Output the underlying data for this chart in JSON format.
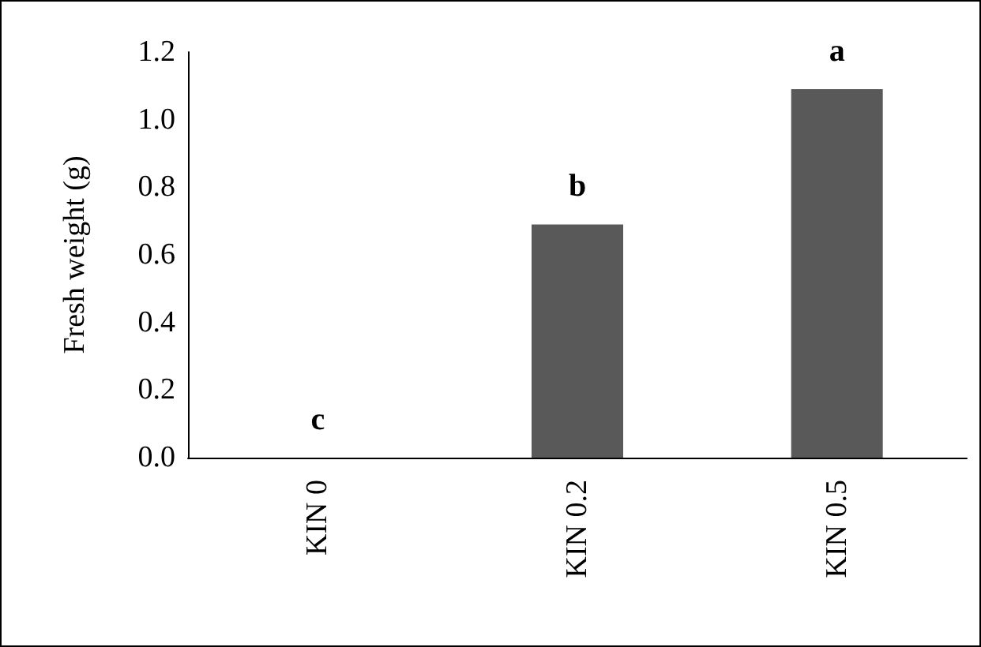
{
  "chart_data": {
    "type": "bar",
    "ylabel": "Fresh weight (g)",
    "categories": [
      "KIN 0",
      "KIN 0.2",
      "KIN 0.5"
    ],
    "values": [
      0,
      0.69,
      1.09
    ],
    "color": "#595959",
    "ylim": [
      0,
      1.2
    ],
    "yticks": [
      {
        "value": 0,
        "label": "0.0"
      },
      {
        "value": 0.2,
        "label": "0.2"
      },
      {
        "value": 0.4,
        "label": "0.4"
      },
      {
        "value": 0.6,
        "label": "0.6"
      },
      {
        "value": 0.8,
        "label": "0.8"
      },
      {
        "value": 1.0,
        "label": "1.0"
      },
      {
        "value": 1.2,
        "label": "1.2"
      }
    ],
    "grid": false,
    "annotations": [
      {
        "text": "c",
        "x": "KIN 0",
        "y": 0
      },
      {
        "text": "b",
        "x": "KIN 0.2",
        "y": 0.69
      },
      {
        "text": "a",
        "x": "KIN 0.5",
        "y": 1.09
      }
    ]
  }
}
